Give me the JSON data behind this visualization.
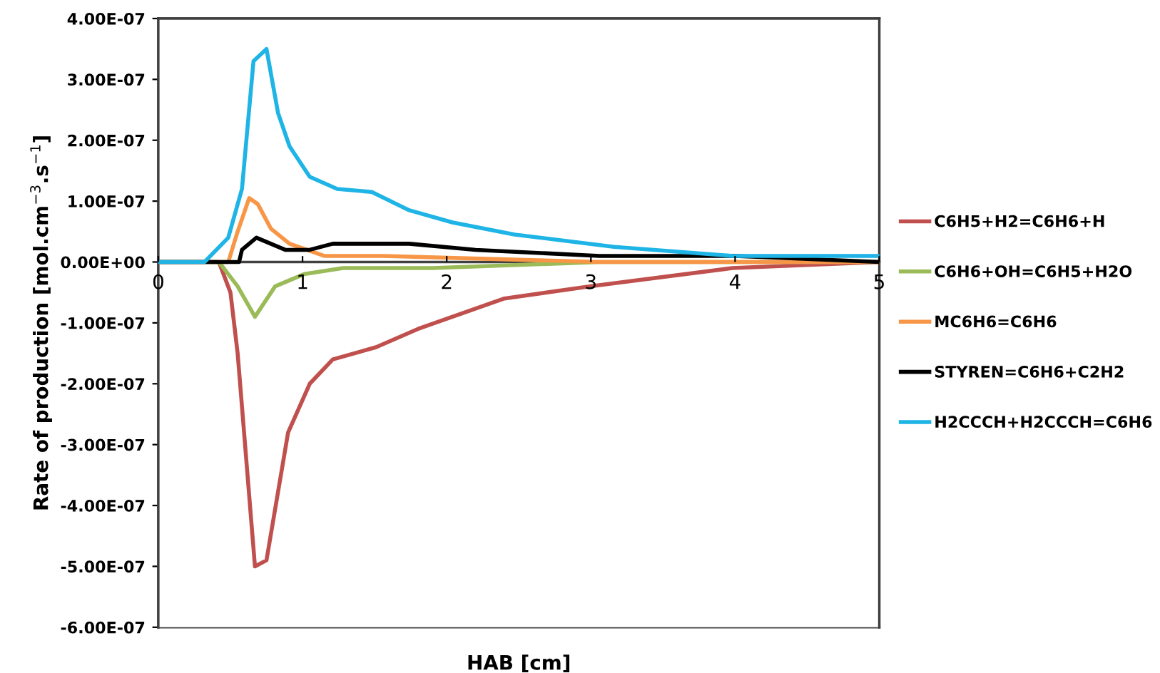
{
  "chart_data": {
    "type": "line",
    "xlabel": "HAB [cm]",
    "ylabel": "Rate of production [mol.cm$^{−3}$.s$^{−1}$]",
    "xlim": [
      0,
      5
    ],
    "xticks": [
      0,
      1,
      2,
      3,
      4,
      5
    ],
    "ylim": [
      -6e-07,
      4e-07
    ],
    "yticks": [
      {
        "value": 4e-07,
        "label": "4.00E-07"
      },
      {
        "value": 3e-07,
        "label": "3.00E-07"
      },
      {
        "value": 2e-07,
        "label": "2.00E-07"
      },
      {
        "value": 1e-07,
        "label": "1.00E-07"
      },
      {
        "value": 0,
        "label": "0.00E+00"
      },
      {
        "value": -1e-07,
        "label": "-1.00E-07"
      },
      {
        "value": -2e-07,
        "label": "-2.00E-07"
      },
      {
        "value": -3e-07,
        "label": "-3.00E-07"
      },
      {
        "value": -4e-07,
        "label": "-4.00E-07"
      },
      {
        "value": -5e-07,
        "label": "-5.00E-07"
      },
      {
        "value": -6e-07,
        "label": "-6.00E-07"
      }
    ],
    "grid": false,
    "legend": "right",
    "marker": "none",
    "line_style": "solid",
    "series": [
      {
        "name": "C6H5+H2=C6H6+H",
        "color": "#c0504d",
        "x": [
          0,
          0.42,
          0.5,
          0.55,
          0.67,
          0.75,
          0.9,
          1.05,
          1.21,
          1.51,
          1.8,
          2.4,
          2.99,
          3.98,
          5
        ],
        "values": [
          0,
          0,
          -5e-08,
          -1.5e-07,
          -5e-07,
          -4.9e-07,
          -2.8e-07,
          -2e-07,
          -1.6e-07,
          -1.4e-07,
          -1.1e-07,
          -6e-08,
          -4e-08,
          -1e-08,
          0
        ]
      },
      {
        "name": "C6H6+OH=C6H5+H2O",
        "color": "#9bbb59",
        "x": [
          0,
          0.42,
          0.55,
          0.67,
          0.81,
          1.01,
          1.28,
          1.9,
          3.06,
          5
        ],
        "values": [
          0,
          0,
          -4e-08,
          -9e-08,
          -4e-08,
          -2e-08,
          -1e-08,
          -1e-08,
          0,
          0
        ]
      },
      {
        "name": "MC6H6=C6H6",
        "color": "#f79646",
        "x": [
          0,
          0.485,
          0.55,
          0.63,
          0.69,
          0.78,
          0.91,
          1.15,
          1.56,
          3.06,
          5
        ],
        "values": [
          0,
          0,
          5e-08,
          1.05e-07,
          9.5e-08,
          5.5e-08,
          3e-08,
          1e-08,
          1e-08,
          0,
          0
        ]
      },
      {
        "name": "STYREN=C6H6+C2H2",
        "color": "#000000",
        "x": [
          0,
          0.56,
          0.58,
          0.68,
          0.78,
          0.88,
          1.05,
          1.21,
          1.48,
          1.74,
          2.2,
          3.06,
          4,
          5
        ],
        "values": [
          0,
          0,
          2e-08,
          4e-08,
          3e-08,
          2e-08,
          2e-08,
          3e-08,
          3e-08,
          3e-08,
          2e-08,
          1e-08,
          1e-08,
          0
        ]
      },
      {
        "name": "H2CCCH+H2CCCH=C6H6",
        "color": "#1fb4e6",
        "x": [
          0,
          0.32,
          0.485,
          0.58,
          0.66,
          0.75,
          0.83,
          0.91,
          1.05,
          1.24,
          1.48,
          1.74,
          2.04,
          2.47,
          3.16,
          3.98,
          5
        ],
        "values": [
          0,
          0,
          4e-08,
          1.2e-07,
          3.3e-07,
          3.5e-07,
          2.45e-07,
          1.9e-07,
          1.4e-07,
          1.2e-07,
          1.15e-07,
          8.5e-08,
          6.5e-08,
          4.5e-08,
          2.5e-08,
          1e-08,
          1e-08
        ]
      }
    ]
  }
}
